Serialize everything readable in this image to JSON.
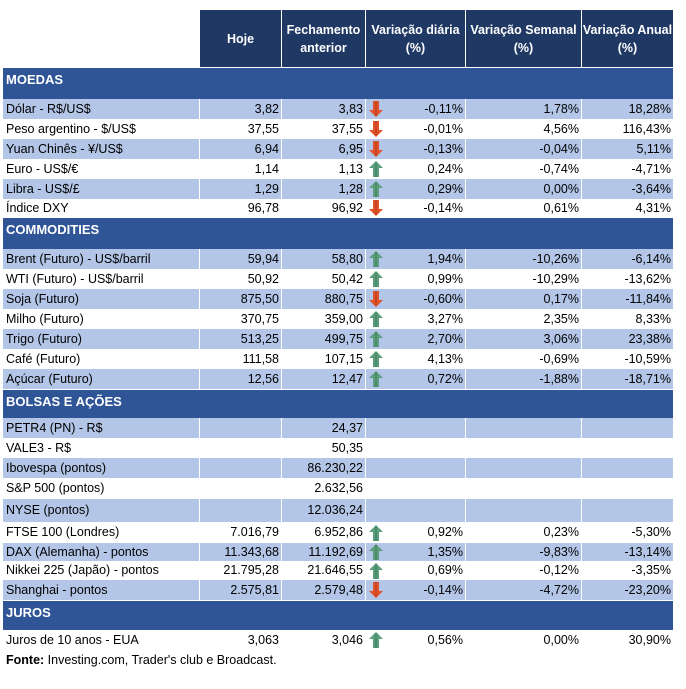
{
  "headers": [
    "Hoje",
    "Fechamento anterior",
    "Variação diária (%)",
    "Variação Semanal (%)",
    "Variação Anual (%)"
  ],
  "colors": {
    "header": "#1f3864",
    "section": "#2f5597",
    "stripe": "#b4c6e7",
    "up": "#5a9e7c",
    "down": "#e0522a"
  },
  "sections": [
    {
      "title": "MOEDAS",
      "rows": [
        {
          "label": "Dólar - R$/US$",
          "hoje": "3,82",
          "fech": "3,83",
          "arrow": "down",
          "dia": "-0,11%",
          "sem": "1,78%",
          "ano": "18,28%"
        },
        {
          "label": "Peso argentino - $/US$",
          "hoje": "37,55",
          "fech": "37,55",
          "arrow": "down",
          "dia": "-0,01%",
          "sem": "4,56%",
          "ano": "116,43%"
        },
        {
          "label": "Yuan Chinês - ¥/US$",
          "hoje": "6,94",
          "fech": "6,95",
          "arrow": "down",
          "dia": "-0,13%",
          "sem": "-0,04%",
          "ano": "5,11%"
        },
        {
          "label": "Euro - US$/€",
          "hoje": "1,14",
          "fech": "1,13",
          "arrow": "up",
          "dia": "0,24%",
          "sem": "-0,74%",
          "ano": "-4,71%"
        },
        {
          "label": "Libra - US$/£",
          "hoje": "1,29",
          "fech": "1,28",
          "arrow": "up",
          "dia": "0,29%",
          "sem": "0,00%",
          "ano": "-3,64%"
        },
        {
          "label": "Índice DXY",
          "hoje": "96,78",
          "fech": "96,92",
          "arrow": "down",
          "dia": "-0,14%",
          "sem": "0,61%",
          "ano": "4,31%"
        }
      ]
    },
    {
      "title": "COMMODITIES",
      "rows": [
        {
          "label": "Brent (Futuro) - US$/barril",
          "hoje": "59,94",
          "fech": "58,80",
          "arrow": "up",
          "dia": "1,94%",
          "sem": "-10,26%",
          "ano": "-6,14%"
        },
        {
          "label": "WTI (Futuro) - US$/barril",
          "hoje": "50,92",
          "fech": "50,42",
          "arrow": "up",
          "dia": "0,99%",
          "sem": "-10,29%",
          "ano": "-13,62%"
        },
        {
          "label": "Soja (Futuro)",
          "hoje": "875,50",
          "fech": "880,75",
          "arrow": "down",
          "dia": "-0,60%",
          "sem": "0,17%",
          "ano": "-11,84%"
        },
        {
          "label": "Milho (Futuro)",
          "hoje": "370,75",
          "fech": "359,00",
          "arrow": "up",
          "dia": "3,27%",
          "sem": "2,35%",
          "ano": "8,33%"
        },
        {
          "label": "Trigo (Futuro)",
          "hoje": "513,25",
          "fech": "499,75",
          "arrow": "up",
          "dia": "2,70%",
          "sem": "3,06%",
          "ano": "23,38%"
        },
        {
          "label": "Café (Futuro)",
          "hoje": "111,58",
          "fech": "107,15",
          "arrow": "up",
          "dia": "4,13%",
          "sem": "-0,69%",
          "ano": "-10,59%"
        },
        {
          "label": "Açúcar (Futuro)",
          "hoje": "12,56",
          "fech": "12,47",
          "arrow": "up",
          "dia": "0,72%",
          "sem": "-1,88%",
          "ano": "-18,71%"
        }
      ]
    },
    {
      "title": "BOLSAS E AÇÕES",
      "rows": [
        {
          "label": "PETR4 (PN) - R$",
          "hoje": "",
          "fech": "24,37",
          "arrow": "",
          "dia": "",
          "sem": "",
          "ano": ""
        },
        {
          "label": "VALE3 - R$",
          "hoje": "",
          "fech": "50,35",
          "arrow": "",
          "dia": "",
          "sem": "",
          "ano": ""
        },
        {
          "label": "Ibovespa (pontos)",
          "hoje": "",
          "fech": "86.230,22",
          "arrow": "",
          "dia": "",
          "sem": "",
          "ano": ""
        },
        {
          "label": "S&P 500 (pontos)",
          "hoje": "",
          "fech": "2.632,56",
          "arrow": "",
          "dia": "",
          "sem": "",
          "ano": ""
        },
        {
          "label": "NYSE (pontos)",
          "hoje": "",
          "fech": "12.036,24",
          "arrow": "",
          "dia": "",
          "sem": "",
          "ano": ""
        },
        {
          "label": "FTSE 100 (Londres)",
          "hoje": "7.016,79",
          "fech": "6.952,86",
          "arrow": "up",
          "dia": "0,92%",
          "sem": "0,23%",
          "ano": "-5,30%"
        },
        {
          "label": "DAX (Alemanha) - pontos",
          "hoje": "11.343,68",
          "fech": "11.192,69",
          "arrow": "up",
          "dia": "1,35%",
          "sem": "-9,83%",
          "ano": "-13,14%"
        },
        {
          "label": "Nikkei 225 (Japão) - pontos",
          "hoje": "21.795,28",
          "fech": "21.646,55",
          "arrow": "up",
          "dia": "0,69%",
          "sem": "-0,12%",
          "ano": "-3,35%"
        },
        {
          "label": "Shanghai - pontos",
          "hoje": "2.575,81",
          "fech": "2.579,48",
          "arrow": "down",
          "dia": "-0,14%",
          "sem": "-4,72%",
          "ano": "-23,20%"
        }
      ]
    },
    {
      "title": "JUROS",
      "rows": [
        {
          "label": "Juros de 10 anos - EUA",
          "hoje": "3,063",
          "fech": "3,046",
          "arrow": "up",
          "dia": "0,56%",
          "sem": "0,00%",
          "ano": "30,90%"
        }
      ]
    }
  ],
  "footer": {
    "bold": "Fonte:",
    "text": " Investing.com, Trader's club e Broadcast."
  }
}
